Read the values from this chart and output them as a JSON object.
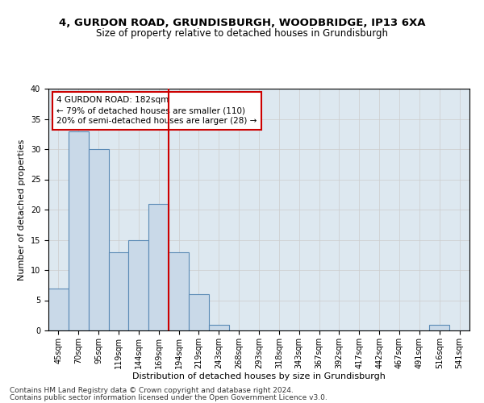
{
  "title_line1": "4, GURDON ROAD, GRUNDISBURGH, WOODBRIDGE, IP13 6XA",
  "title_line2": "Size of property relative to detached houses in Grundisburgh",
  "xlabel": "Distribution of detached houses by size in Grundisburgh",
  "ylabel": "Number of detached properties",
  "bar_labels": [
    "45sqm",
    "70sqm",
    "95sqm",
    "119sqm",
    "144sqm",
    "169sqm",
    "194sqm",
    "219sqm",
    "243sqm",
    "268sqm",
    "293sqm",
    "318sqm",
    "343sqm",
    "367sqm",
    "392sqm",
    "417sqm",
    "442sqm",
    "467sqm",
    "491sqm",
    "516sqm",
    "541sqm"
  ],
  "bar_values": [
    7,
    33,
    30,
    13,
    15,
    21,
    13,
    6,
    1,
    0,
    0,
    0,
    0,
    0,
    0,
    0,
    0,
    0,
    0,
    1,
    0
  ],
  "bar_color": "#c9d9e8",
  "bar_edgecolor": "#5a8ab5",
  "vline_color": "#cc0000",
  "annotation_text": "4 GURDON ROAD: 182sqm\n← 79% of detached houses are smaller (110)\n20% of semi-detached houses are larger (28) →",
  "annotation_box_color": "#cc0000",
  "ylim": [
    0,
    40
  ],
  "yticks": [
    0,
    5,
    10,
    15,
    20,
    25,
    30,
    35,
    40
  ],
  "grid_color": "#cccccc",
  "bg_color": "#dde8f0",
  "footer_line1": "Contains HM Land Registry data © Crown copyright and database right 2024.",
  "footer_line2": "Contains public sector information licensed under the Open Government Licence v3.0.",
  "title_fontsize": 9.5,
  "subtitle_fontsize": 8.5,
  "xlabel_fontsize": 8,
  "ylabel_fontsize": 8,
  "tick_fontsize": 7,
  "annotation_fontsize": 7.5,
  "footer_fontsize": 6.5
}
